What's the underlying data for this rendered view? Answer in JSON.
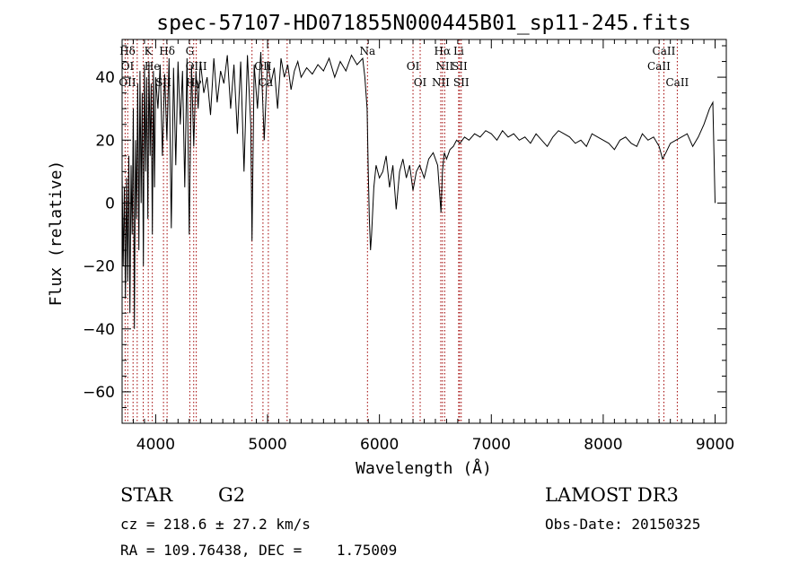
{
  "chart_data": {
    "type": "line",
    "title": "spec-57107-HD071855N000445B01_sp11-245.fits",
    "xlabel": "Wavelength (Å)",
    "ylabel": "Flux (relative)",
    "xlim": [
      3700,
      9100
    ],
    "ylim": [
      -70,
      52
    ],
    "xticks": [
      4000,
      5000,
      6000,
      7000,
      8000,
      9000
    ],
    "yticks": [
      -60,
      -40,
      -20,
      0,
      20,
      40
    ],
    "series": [
      {
        "name": "flux",
        "x": [
          3700,
          3710,
          3720,
          3730,
          3740,
          3750,
          3760,
          3770,
          3780,
          3790,
          3800,
          3810,
          3820,
          3830,
          3840,
          3850,
          3860,
          3870,
          3880,
          3890,
          3900,
          3910,
          3920,
          3930,
          3940,
          3950,
          3960,
          3970,
          3980,
          3990,
          4000,
          4020,
          4040,
          4060,
          4080,
          4100,
          4120,
          4140,
          4160,
          4180,
          4200,
          4220,
          4240,
          4260,
          4280,
          4300,
          4320,
          4340,
          4360,
          4380,
          4400,
          4430,
          4460,
          4490,
          4520,
          4550,
          4580,
          4610,
          4640,
          4670,
          4700,
          4730,
          4760,
          4790,
          4820,
          4850,
          4861,
          4880,
          4910,
          4940,
          4970,
          5000,
          5030,
          5060,
          5090,
          5120,
          5150,
          5180,
          5210,
          5240,
          5270,
          5300,
          5350,
          5400,
          5450,
          5500,
          5550,
          5600,
          5650,
          5700,
          5750,
          5800,
          5850,
          5870,
          5890,
          5900,
          5910,
          5920,
          5930,
          5950,
          5970,
          6000,
          6030,
          6060,
          6090,
          6120,
          6150,
          6180,
          6210,
          6240,
          6270,
          6300,
          6330,
          6360,
          6400,
          6440,
          6480,
          6520,
          6550,
          6563,
          6580,
          6600,
          6630,
          6660,
          6690,
          6720,
          6760,
          6800,
          6850,
          6900,
          6950,
          7000,
          7050,
          7100,
          7150,
          7200,
          7250,
          7300,
          7350,
          7400,
          7450,
          7500,
          7550,
          7600,
          7650,
          7700,
          7750,
          7800,
          7850,
          7900,
          7950,
          8000,
          8050,
          8100,
          8150,
          8200,
          8250,
          8300,
          8350,
          8400,
          8450,
          8500,
          8530,
          8560,
          8600,
          8650,
          8700,
          8750,
          8800,
          8850,
          8900,
          8950,
          8980,
          9000
        ],
        "values": [
          10,
          -20,
          5,
          -30,
          8,
          -25,
          15,
          -35,
          12,
          -10,
          30,
          -40,
          20,
          -5,
          38,
          -15,
          42,
          0,
          35,
          -20,
          44,
          10,
          40,
          -5,
          45,
          15,
          38,
          -10,
          42,
          5,
          40,
          30,
          44,
          15,
          41,
          20,
          46,
          -8,
          43,
          12,
          45,
          25,
          42,
          5,
          46,
          -10,
          44,
          18,
          42,
          30,
          45,
          35,
          40,
          28,
          46,
          32,
          42,
          38,
          47,
          30,
          44,
          22,
          45,
          10,
          47,
          25,
          -12,
          44,
          30,
          48,
          20,
          45,
          38,
          43,
          30,
          46,
          40,
          44,
          36,
          42,
          45,
          40,
          43,
          41,
          44,
          42,
          46,
          40,
          45,
          42,
          47,
          44,
          46,
          40,
          30,
          10,
          -5,
          -15,
          -10,
          5,
          12,
          8,
          10,
          15,
          5,
          12,
          -2,
          10,
          14,
          8,
          12,
          4,
          10,
          12,
          8,
          14,
          16,
          12,
          -3,
          10,
          16,
          14,
          17,
          18,
          20,
          19,
          21,
          20,
          22,
          21,
          23,
          22,
          20,
          23,
          21,
          22,
          20,
          21,
          19,
          22,
          20,
          18,
          21,
          23,
          22,
          21,
          19,
          20,
          18,
          22,
          21,
          20,
          19,
          17,
          20,
          21,
          19,
          18,
          22,
          20,
          21,
          18,
          14,
          16,
          19,
          20,
          21,
          22,
          18,
          21,
          25,
          30,
          32,
          0
        ]
      }
    ],
    "line_labels": [
      {
        "label": "Hδ",
        "wavelength": 3730
      },
      {
        "label": "OI",
        "wavelength": 3727
      },
      {
        "label": "OII",
        "wavelength": 3726
      },
      {
        "label": "K",
        "wavelength": 3934
      },
      {
        "label": "He",
        "wavelength": 3970
      },
      {
        "label": "SII",
        "wavelength": 4070
      },
      {
        "label": "Hδ",
        "wavelength": 4102
      },
      {
        "label": "OIII",
        "wavelength": 4363
      },
      {
        "label": "Hγ",
        "wavelength": 4340
      },
      {
        "label": "G",
        "wavelength": 4305
      },
      {
        "label": "OII",
        "wavelength": 4959
      },
      {
        "label": "Ca",
        "wavelength": 4983
      },
      {
        "label": "Na",
        "wavelength": 5893
      },
      {
        "label": "OI",
        "wavelength": 6300
      },
      {
        "label": "OI",
        "wavelength": 6364
      },
      {
        "label": "Hα",
        "wavelength": 6563
      },
      {
        "label": "SII",
        "wavelength": 6716
      },
      {
        "label": "NII",
        "wavelength": 6548
      },
      {
        "label": "Li",
        "wavelength": 6708
      },
      {
        "label": "NII",
        "wavelength": 6583
      },
      {
        "label": "SII",
        "wavelength": 6731
      },
      {
        "label": "CaII",
        "wavelength": 8542
      },
      {
        "label": "CaII",
        "wavelength": 8498
      },
      {
        "label": "CaII",
        "wavelength": 8662
      }
    ],
    "marker_lines": [
      3727,
      3750,
      3798,
      3835,
      3889,
      3934,
      3970,
      4070,
      4102,
      4305,
      4340,
      4363,
      4861,
      4959,
      5007,
      5175,
      5893,
      6300,
      6364,
      6548,
      6563,
      6583,
      6708,
      6716,
      6731,
      8498,
      8542,
      8662
    ]
  },
  "info": {
    "object_type": "STAR",
    "subclass": "G2",
    "survey": "LAMOST DR3",
    "redshift_line": "cz = 218.6 ± 27.2 km/s",
    "obs_date_line": "Obs-Date: 20150325",
    "coords_line": "RA = 109.76438, DEC =    1.75009"
  }
}
